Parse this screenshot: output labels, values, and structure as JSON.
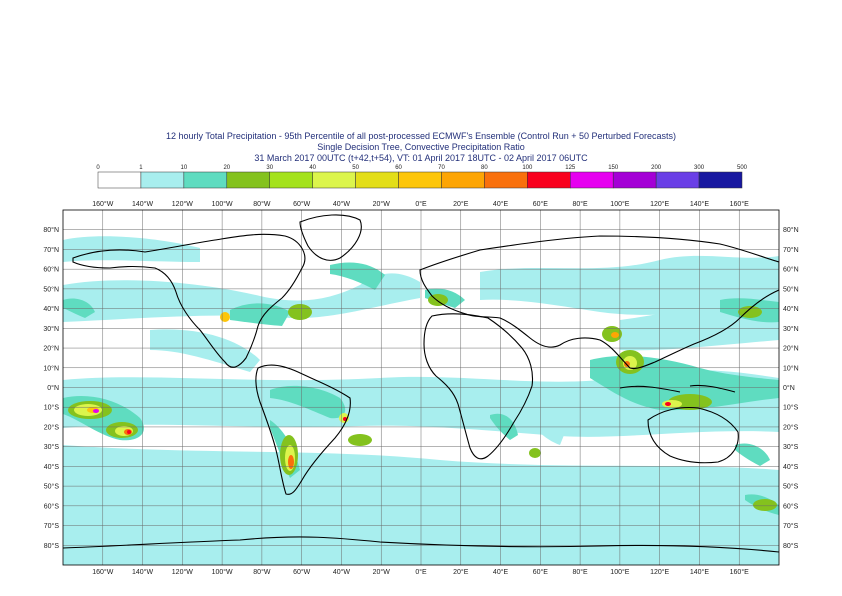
{
  "title": {
    "line1": "12 hourly Total Precipitation - 95th Percentile of all post-processed ECMWF's Ensemble (Control Run + 50 Perturbed Forecasts)",
    "line2": "Single Decision Tree, Convective Precipitation Ratio",
    "line3": "31 March 2017 00UTC (t+42,t+54), VT: 01 April 2017 18UTC - 02 April 2017 06UTC"
  },
  "legend": {
    "thresholds": [
      "0",
      "1",
      "10",
      "20",
      "30",
      "40",
      "50",
      "60",
      "70",
      "80",
      "100",
      "125",
      "150",
      "200",
      "300",
      "500"
    ],
    "colors": [
      "#ffffff",
      "#a8eeee",
      "#5fdcc0",
      "#84c21e",
      "#a4e21c",
      "#dcf54c",
      "#e3de18",
      "#fdc60a",
      "#fda504",
      "#f9700c",
      "#f9001e",
      "#e600f0",
      "#a400d6",
      "#6a3fe6",
      "#1818a0",
      "#141450"
    ]
  },
  "map": {
    "top_lon_labels": [
      "160°W",
      "140°W",
      "120°W",
      "100°W",
      "80°W",
      "60°W",
      "40°W",
      "20°W",
      "0°E",
      "20°E",
      "40°E",
      "60°E",
      "80°E",
      "100°E",
      "120°E",
      "140°E",
      "160°E"
    ],
    "bottom_lon_labels": [
      "160°W",
      "140°W",
      "120°W",
      "100°W",
      "80°W",
      "60°W",
      "40°W",
      "20°W",
      "0°E",
      "20°E",
      "40°E",
      "60°E",
      "80°E",
      "100°E",
      "120°E",
      "140°E",
      "160°E"
    ],
    "left_lat_labels": [
      "80°N",
      "70°N",
      "60°N",
      "50°N",
      "40°N",
      "30°N",
      "20°N",
      "10°N",
      "0°N",
      "10°S",
      "20°S",
      "30°S",
      "40°S",
      "50°S",
      "60°S",
      "70°S",
      "80°S"
    ],
    "right_lat_labels": [
      "80°N",
      "70°N",
      "60°N",
      "50°N",
      "40°N",
      "30°N",
      "20°N",
      "10°N",
      "0°N",
      "10°S",
      "20°S",
      "30°S",
      "40°S",
      "50°S",
      "60°S",
      "70°S",
      "80°S"
    ]
  }
}
